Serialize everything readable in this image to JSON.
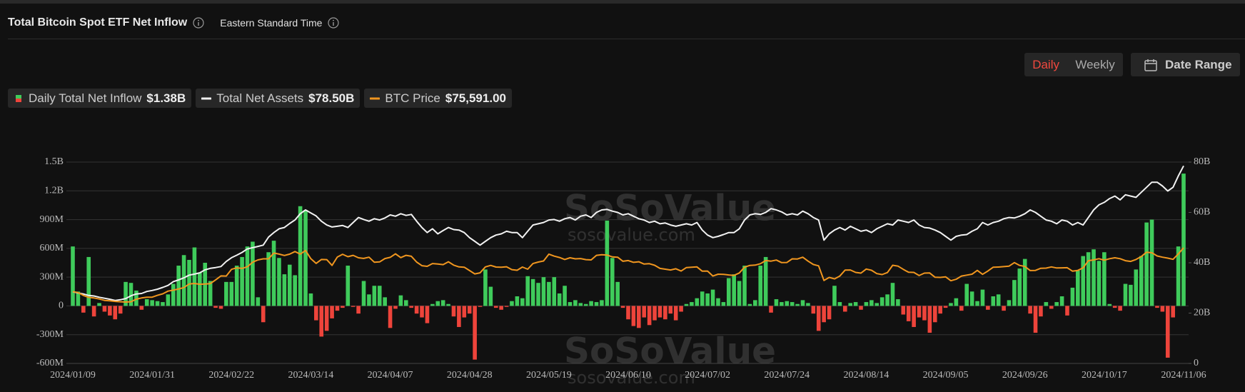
{
  "header": {
    "title": "Total Bitcoin Spot ETF Net Inflow",
    "timezone": "Eastern Standard Time",
    "buttons": [
      "Daily",
      "Weekly"
    ],
    "date_range": "Date Range"
  },
  "watermark": {
    "name": "SoSoValue",
    "url": "sosovalue.com"
  },
  "chart_data": {
    "type": "bar",
    "grid": true,
    "categories": [
      "2024/01/09",
      null,
      null,
      null,
      null,
      null,
      null,
      null,
      null,
      null,
      null,
      null,
      null,
      null,
      null,
      "2024/01/31",
      null,
      null,
      null,
      null,
      null,
      null,
      null,
      null,
      null,
      null,
      null,
      null,
      null,
      null,
      "2024/02/22",
      null,
      null,
      null,
      null,
      null,
      null,
      null,
      null,
      null,
      null,
      null,
      null,
      null,
      null,
      "2024/03/14",
      null,
      null,
      null,
      null,
      null,
      null,
      null,
      null,
      null,
      null,
      null,
      null,
      null,
      null,
      "2024/04/07",
      null,
      null,
      null,
      null,
      null,
      null,
      null,
      null,
      null,
      null,
      null,
      null,
      null,
      null,
      "2024/04/28",
      null,
      null,
      null,
      null,
      null,
      null,
      null,
      null,
      null,
      null,
      null,
      null,
      null,
      null,
      "2024/05/19",
      null,
      null,
      null,
      null,
      null,
      null,
      null,
      null,
      null,
      null,
      null,
      null,
      null,
      null,
      "2024/06/10",
      null,
      null,
      null,
      null,
      null,
      null,
      null,
      null,
      null,
      null,
      null,
      null,
      null,
      null,
      "2024/07/02",
      null,
      null,
      null,
      null,
      null,
      null,
      null,
      null,
      null,
      null,
      null,
      null,
      null,
      null,
      "2024/07/24",
      null,
      null,
      null,
      null,
      null,
      null,
      null,
      null,
      null,
      null,
      null,
      null,
      null,
      null,
      "2024/08/14",
      null,
      null,
      null,
      null,
      null,
      null,
      null,
      null,
      null,
      null,
      null,
      null,
      null,
      null,
      "2024/09/05",
      null,
      null,
      null,
      null,
      null,
      null,
      null,
      null,
      null,
      null,
      null,
      null,
      null,
      null,
      "2024/09/26",
      null,
      null,
      null,
      null,
      null,
      null,
      null,
      null,
      null,
      null,
      null,
      null,
      null,
      null,
      "2024/10/17",
      null,
      null,
      null,
      null,
      null,
      null,
      null,
      null,
      null,
      null,
      null,
      null,
      null,
      null,
      "2024/11/06"
    ],
    "ylim": [
      -600000000.0,
      1500000000.0
    ],
    "yticks": [
      {
        "value": -600000000.0,
        "label": "-600M"
      },
      {
        "value": -300000000.0,
        "label": "-300M"
      },
      0,
      {
        "value": 300000000.0,
        "label": "300M"
      },
      {
        "value": 600000000.0,
        "label": "600M"
      },
      {
        "value": 900000000.0,
        "label": "900M"
      },
      {
        "value": 1200000000.0,
        "label": "1.2B"
      },
      {
        "value": 1500000000.0,
        "label": "1.5B"
      }
    ],
    "y2lim": [
      0,
      80000000000.0
    ],
    "y2ticks": [
      0,
      {
        "value": 20000000000.0,
        "label": "20B"
      },
      {
        "value": 40000000000.0,
        "label": "40B"
      },
      {
        "value": 60000000000.0,
        "label": "60B"
      },
      {
        "value": 80000000000.0,
        "label": "80B"
      }
    ],
    "series": [
      {
        "name": "Daily Total Net Inflow",
        "type": "bar",
        "legend_value": "$1.38B",
        "color": "#3fcb5b",
        "negative_color": "#ee443b",
        "values": [
          620000000.0,
          150000000.0,
          -70000000.0,
          510000000.0,
          -110000000.0,
          30000000.0,
          -60000000.0,
          -100000000.0,
          -140000000.0,
          -80000000.0,
          250000000.0,
          240000000.0,
          160000000.0,
          -40000000.0,
          70000000.0,
          60000000.0,
          50000000.0,
          40000000.0,
          120000000.0,
          230000000.0,
          420000000.0,
          530000000.0,
          480000000.0,
          610000000.0,
          350000000.0,
          450000000.0,
          260000000.0,
          -20000000.0,
          -30000000.0,
          250000000.0,
          250000000.0,
          420000000.0,
          510000000.0,
          620000000.0,
          670000000.0,
          90000000.0,
          -170000000.0,
          560000000.0,
          680000000.0,
          500000000.0,
          330000000.0,
          430000000.0,
          320000000.0,
          1040000000.0,
          1000000000.0,
          130000000.0,
          -150000000.0,
          -320000000.0,
          -260000000.0,
          -130000000.0,
          -50000000.0,
          -20000000.0,
          420000000.0,
          -10000000.0,
          -80000000.0,
          260000000.0,
          120000000.0,
          210000000.0,
          210000000.0,
          90000000.0,
          -230000000.0,
          -30000000.0,
          110000000.0,
          60000000.0,
          -20000000.0,
          -80000000.0,
          -120000000.0,
          -180000000.0,
          20000000.0,
          50000000.0,
          60000000.0,
          20000000.0,
          -110000000.0,
          -220000000.0,
          -120000000.0,
          -80000000.0,
          -560000000.0,
          -10000000.0,
          380000000.0,
          200000000.0,
          -20000000.0,
          -40000000.0,
          -10000000.0,
          50000000.0,
          100000000.0,
          80000000.0,
          310000000.0,
          280000000.0,
          240000000.0,
          300000000.0,
          250000000.0,
          300000000.0,
          130000000.0,
          210000000.0,
          40000000.0,
          60000000.0,
          30000000.0,
          20000000.0,
          50000000.0,
          40000000.0,
          60000000.0,
          890000000.0,
          500000000.0,
          250000000.0,
          -20000000.0,
          -140000000.0,
          -210000000.0,
          -230000000.0,
          -120000000.0,
          -200000000.0,
          -150000000.0,
          -120000000.0,
          -140000000.0,
          -80000000.0,
          -150000000.0,
          -60000000.0,
          20000000.0,
          40000000.0,
          80000000.0,
          150000000.0,
          130000000.0,
          170000000.0,
          80000000.0,
          40000000.0,
          290000000.0,
          330000000.0,
          260000000.0,
          420000000.0,
          20000000.0,
          60000000.0,
          420000000.0,
          510000000.0,
          -70000000.0,
          70000000.0,
          40000000.0,
          50000000.0,
          40000000.0,
          20000000.0,
          60000000.0,
          30000000.0,
          -80000000.0,
          -260000000.0,
          -170000000.0,
          -140000000.0,
          210000000.0,
          40000000.0,
          -60000000.0,
          30000000.0,
          40000000.0,
          -40000000.0,
          40000000.0,
          60000000.0,
          30000000.0,
          90000000.0,
          120000000.0,
          240000000.0,
          70000000.0,
          -90000000.0,
          -160000000.0,
          -220000000.0,
          -120000000.0,
          -150000000.0,
          -280000000.0,
          -170000000.0,
          -80000000.0,
          -20000000.0,
          30000000.0,
          80000000.0,
          -50000000.0,
          230000000.0,
          150000000.0,
          50000000.0,
          170000000.0,
          -40000000.0,
          100000000.0,
          120000000.0,
          -50000000.0,
          60000000.0,
          270000000.0,
          390000000.0,
          490000000.0,
          -80000000.0,
          -280000000.0,
          -110000000.0,
          40000000.0,
          -30000000.0,
          40000000.0,
          100000000.0,
          -100000000.0,
          190000000.0,
          370000000.0,
          520000000.0,
          560000000.0,
          590000000.0,
          470000000.0,
          560000000.0,
          20000000.0,
          -20000000.0,
          -50000000.0,
          230000000.0,
          220000000.0,
          380000000.0,
          520000000.0,
          870000000.0,
          900000000.0,
          -20000000.0,
          -60000000.0,
          -540000000.0,
          -120000000.0,
          620000000.0,
          1380000000.0
        ]
      },
      {
        "name": "Total Net Assets",
        "type": "line",
        "axis": "y2",
        "legend_value": "$78.50B",
        "color": "#f2f2f2",
        "values": [
          28500000000.0,
          28000000000.0,
          27600000000.0,
          27000000000.0,
          26800000000.0,
          26300000000.0,
          25900000000.0,
          25500000000.0,
          25000000000.0,
          25300000000.0,
          25800000000.0,
          26900000000.0,
          27600000000.0,
          27800000000.0,
          28600000000.0,
          29000000000.0,
          29500000000.0,
          30200000000.0,
          31000000000.0,
          32500000000.0,
          33200000000.0,
          34000000000.0,
          35100000000.0,
          35500000000.0,
          36000000000.0,
          37200000000.0,
          37800000000.0,
          38100000000.0,
          38500000000.0,
          40500000000.0,
          42000000000.0,
          43000000000.0,
          44100000000.0,
          45500000000.0,
          46000000000.0,
          46500000000.0,
          47000000000.0,
          50200000000.0,
          52000000000.0,
          53500000000.0,
          54000000000.0,
          55600000000.0,
          57000000000.0,
          59500000000.0,
          61000000000.0,
          59800000000.0,
          58600000000.0,
          56500000000.0,
          55000000000.0,
          54200000000.0,
          54500000000.0,
          54800000000.0,
          54000000000.0,
          56000000000.0,
          58000000000.0,
          57200000000.0,
          56500000000.0,
          57500000000.0,
          57000000000.0,
          57800000000.0,
          59000000000.0,
          58500000000.0,
          59500000000.0,
          58800000000.0,
          59200000000.0,
          56500000000.0,
          54000000000.0,
          52000000000.0,
          53500000000.0,
          51500000000.0,
          52800000000.0,
          54000000000.0,
          53200000000.0,
          53000000000.0,
          52000000000.0,
          50000000000.0,
          48500000000.0,
          47000000000.0,
          48500000000.0,
          50000000000.0,
          51000000000.0,
          51500000000.0,
          52500000000.0,
          52000000000.0,
          52000000000.0,
          50000000000.0,
          52500000000.0,
          55000000000.0,
          55500000000.0,
          56000000000.0,
          57000000000.0,
          57200000000.0,
          56500000000.0,
          57500000000.0,
          58000000000.0,
          57000000000.0,
          58500000000.0,
          59000000000.0,
          58000000000.0,
          60000000000.0,
          61000000000.0,
          61200000000.0,
          60500000000.0,
          60000000000.0,
          59000000000.0,
          59500000000.0,
          58500000000.0,
          57500000000.0,
          57000000000.0,
          56000000000.0,
          56500000000.0,
          55500000000.0,
          55800000000.0,
          55000000000.0,
          54500000000.0,
          55000000000.0,
          55500000000.0,
          55000000000.0,
          56000000000.0,
          53000000000.0,
          51000000000.0,
          50000000000.0,
          50500000000.0,
          51200000000.0,
          52000000000.0,
          52000000000.0,
          53500000000.0,
          57000000000.0,
          59000000000.0,
          59500000000.0,
          59200000000.0,
          60000000000.0,
          61500000000.0,
          61000000000.0,
          60200000000.0,
          59000000000.0,
          59500000000.0,
          59000000000.0,
          60500000000.0,
          59500000000.0,
          58000000000.0,
          57000000000.0,
          49000000000.0,
          51500000000.0,
          53000000000.0,
          54000000000.0,
          53000000000.0,
          54500000000.0,
          53500000000.0,
          52500000000.0,
          53000000000.0,
          52000000000.0,
          53500000000.0,
          54500000000.0,
          55500000000.0,
          55000000000.0,
          57000000000.0,
          56500000000.0,
          56000000000.0,
          57000000000.0,
          55000000000.0,
          54000000000.0,
          53800000000.0,
          53000000000.0,
          52000000000.0,
          50500000000.0,
          49000000000.0,
          50500000000.0,
          51000000000.0,
          51200000000.0,
          52500000000.0,
          53500000000.0,
          56000000000.0,
          55000000000.0,
          56000000000.0,
          56500000000.0,
          57500000000.0,
          58000000000.0,
          57800000000.0,
          58500000000.0,
          59500000000.0,
          61000000000.0,
          60000000000.0,
          58500000000.0,
          57000000000.0,
          56500000000.0,
          55500000000.0,
          57000000000.0,
          56500000000.0,
          55000000000.0,
          56000000000.0,
          55000000000.0,
          58000000000.0,
          61000000000.0,
          63000000000.0,
          64000000000.0,
          65500000000.0,
          66500000000.0,
          65000000000.0,
          67000000000.0,
          66500000000.0,
          66000000000.0,
          68000000000.0,
          70000000000.0,
          72000000000.0,
          72000000000.0,
          70500000000.0,
          68500000000.0,
          70000000000.0,
          74500000000.0,
          78500000000.0
        ]
      },
      {
        "name": "BTC Price",
        "type": "line",
        "axis": "hidden",
        "legend_value": "$75,591.00",
        "color": "#f0961f",
        "values": [
          46800,
          46100,
          44200,
          43000,
          42600,
          41900,
          41000,
          40700,
          40300,
          40100,
          39900,
          40100,
          41800,
          42600,
          43100,
          43100,
          44300,
          45300,
          47100,
          47700,
          48500,
          49400,
          51800,
          52100,
          51600,
          51800,
          52000,
          54500,
          57100,
          57000,
          61400,
          62400,
          62000,
          63100,
          66100,
          67600,
          68300,
          68300,
          72100,
          71400,
          70500,
          71400,
          73100,
          71400,
          73800,
          68400,
          65300,
          67900,
          67800,
          64000,
          69500,
          71300,
          69700,
          70600,
          69000,
          68600,
          69400,
          66100,
          66300,
          68500,
          69300,
          71600,
          69100,
          70600,
          70000,
          66200,
          63800,
          63400,
          65200,
          64900,
          64500,
          66400,
          64200,
          63000,
          62800,
          60600,
          58400,
          59100,
          63000,
          64000,
          62900,
          62800,
          63100,
          61200,
          60800,
          62900,
          61500,
          65200,
          66200,
          66900,
          71400,
          70100,
          69200,
          67900,
          69000,
          68300,
          68500,
          67800,
          67600,
          70600,
          71000,
          70800,
          69600,
          69400,
          66700,
          67200,
          66000,
          66400,
          64900,
          65100,
          64100,
          62000,
          61500,
          61000,
          61800,
          60300,
          62600,
          62800,
          63000,
          60200,
          60300,
          57000,
          58200,
          58100,
          57700,
          57400,
          59000,
          62800,
          64000,
          64200,
          65100,
          67200,
          66800,
          67500,
          65800,
          65900,
          68300,
          68200,
          69400,
          66800,
          64600,
          63700,
          54100,
          56100,
          55100,
          57000,
          60900,
          61000,
          59400,
          58900,
          61600,
          60800,
          58600,
          58000,
          59300,
          64100,
          63500,
          61400,
          59500,
          59400,
          57300,
          58900,
          59000,
          56200,
          56100,
          56500,
          53900,
          54900,
          57000,
          57600,
          58200,
          60700,
          58100,
          60300,
          62800,
          62900,
          63200,
          63500,
          65800,
          64000,
          63300,
          60600,
          60700,
          62100,
          62200,
          63000,
          62300,
          62400,
          62500,
          60200,
          60700,
          62400,
          67100,
          67600,
          68400,
          67400,
          68400,
          69000,
          68400,
          67100,
          66600,
          67900,
          69800,
          72700,
          72300,
          70200,
          69400,
          68800,
          68000,
          71500,
          75591
        ]
      }
    ]
  }
}
